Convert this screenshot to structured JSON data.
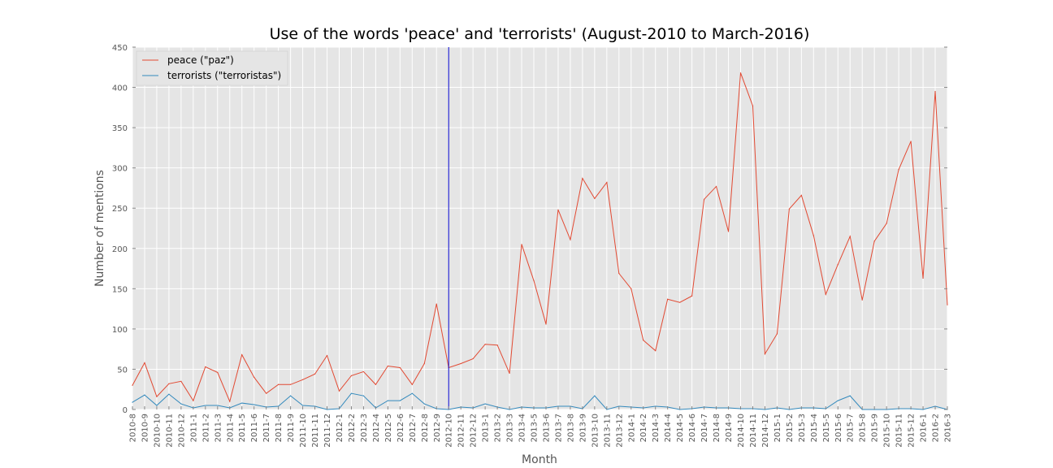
{
  "chart_data": {
    "type": "line",
    "title": "Use of the words 'peace' and 'terrorists' (August-2010 to March-2016)",
    "xlabel": "Month",
    "ylabel": "Number of mentions",
    "ylim": [
      0,
      450
    ],
    "yticks": [
      0,
      50,
      100,
      150,
      200,
      250,
      300,
      350,
      400,
      450
    ],
    "grid": true,
    "legend_position": "top-left",
    "x": [
      "2010-8",
      "2010-9",
      "2010-10",
      "2010-11",
      "2010-12",
      "2011-1",
      "2011-2",
      "2011-3",
      "2011-4",
      "2011-5",
      "2011-6",
      "2011-7",
      "2011-8",
      "2011-9",
      "2011-10",
      "2011-11",
      "2011-12",
      "2012-1",
      "2012-2",
      "2012-3",
      "2012-4",
      "2012-5",
      "2012-6",
      "2012-7",
      "2012-8",
      "2012-9",
      "2012-10",
      "2012-11",
      "2012-12",
      "2013-1",
      "2013-2",
      "2013-3",
      "2013-4",
      "2013-5",
      "2013-6",
      "2013-7",
      "2013-8",
      "2013-9",
      "2013-10",
      "2013-11",
      "2013-12",
      "2014-1",
      "2014-2",
      "2014-3",
      "2014-4",
      "2014-5",
      "2014-6",
      "2014-7",
      "2014-8",
      "2014-9",
      "2014-10",
      "2014-11",
      "2014-12",
      "2015-1",
      "2015-2",
      "2015-3",
      "2015-4",
      "2015-5",
      "2015-6",
      "2015-7",
      "2015-8",
      "2015-9",
      "2015-10",
      "2015-11",
      "2015-12",
      "2016-1",
      "2016-2",
      "2016-3"
    ],
    "vline_x": "2012-10",
    "series": [
      {
        "name": "peace (\"paz\")",
        "color": "#e24a33",
        "values": [
          30,
          58,
          16,
          32,
          35,
          11,
          53,
          46,
          10,
          68,
          40,
          20,
          31,
          31,
          37,
          44,
          67,
          23,
          42,
          47,
          31,
          54,
          52,
          31,
          57,
          131,
          52,
          57,
          63,
          81,
          80,
          45,
          205,
          160,
          106,
          248,
          211,
          287,
          262,
          282,
          169,
          150,
          86,
          73,
          137,
          133,
          141,
          261,
          277,
          221,
          418,
          377,
          69,
          94,
          249,
          266,
          216,
          143,
          180,
          215,
          136,
          209,
          231,
          298,
          333,
          163,
          395,
          130
        ]
      },
      {
        "name": "terrorists (\"terroristas\")",
        "color": "#348abd",
        "values": [
          9,
          18,
          5,
          19,
          7,
          2,
          5,
          5,
          2,
          8,
          6,
          3,
          4,
          17,
          5,
          4,
          0,
          1,
          20,
          17,
          2,
          11,
          11,
          20,
          7,
          1,
          0,
          3,
          2,
          7,
          3,
          0,
          3,
          2,
          2,
          4,
          4,
          1,
          17,
          0,
          4,
          3,
          2,
          4,
          3,
          0,
          1,
          3,
          2,
          2,
          1,
          1,
          0,
          2,
          0,
          2,
          2,
          1,
          11,
          17,
          0,
          0,
          0,
          1,
          1,
          0,
          4,
          0
        ]
      }
    ]
  }
}
